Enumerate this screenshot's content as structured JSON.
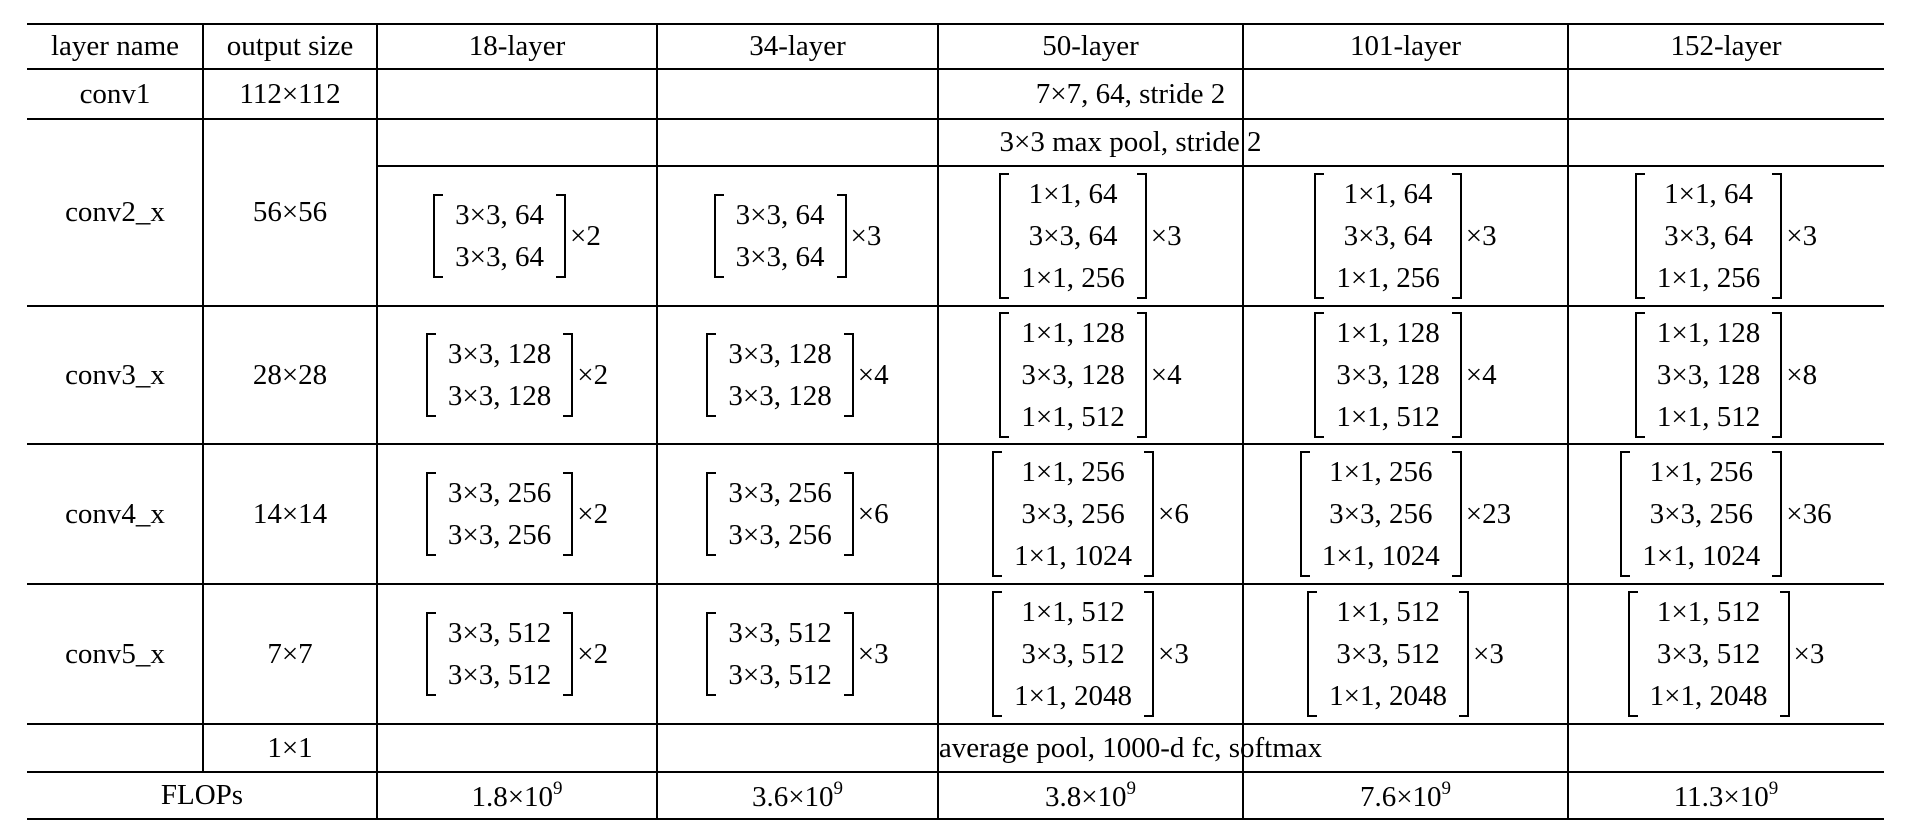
{
  "table": {
    "header": [
      "layer name",
      "output size",
      "18-layer",
      "34-layer",
      "50-layer",
      "101-layer",
      "152-layer"
    ],
    "rows": [
      {
        "layer": "conv1",
        "output": "112×112",
        "span": "7×7, 64, stride 2"
      },
      {
        "layer": "conv2_x",
        "output": "56×56",
        "span": "3×3 max pool, stride 2",
        "blocks": [
          {
            "lines": [
              "3×3, 64",
              "3×3, 64"
            ],
            "times": "×2"
          },
          {
            "lines": [
              "3×3, 64",
              "3×3, 64"
            ],
            "times": "×3"
          },
          {
            "lines": [
              "1×1, 64",
              "3×3, 64",
              "1×1, 256"
            ],
            "times": "×3"
          },
          {
            "lines": [
              "1×1, 64",
              "3×3, 64",
              "1×1, 256"
            ],
            "times": "×3"
          },
          {
            "lines": [
              "1×1, 64",
              "3×3, 64",
              "1×1, 256"
            ],
            "times": "×3"
          }
        ]
      },
      {
        "layer": "conv3_x",
        "output": "28×28",
        "blocks": [
          {
            "lines": [
              "3×3, 128",
              "3×3, 128"
            ],
            "times": "×2"
          },
          {
            "lines": [
              "3×3, 128",
              "3×3, 128"
            ],
            "times": "×4"
          },
          {
            "lines": [
              "1×1, 128",
              "3×3, 128",
              "1×1, 512"
            ],
            "times": "×4"
          },
          {
            "lines": [
              "1×1, 128",
              "3×3, 128",
              "1×1, 512"
            ],
            "times": "×4"
          },
          {
            "lines": [
              "1×1, 128",
              "3×3, 128",
              "1×1, 512"
            ],
            "times": "×8"
          }
        ]
      },
      {
        "layer": "conv4_x",
        "output": "14×14",
        "blocks": [
          {
            "lines": [
              "3×3, 256",
              "3×3, 256"
            ],
            "times": "×2"
          },
          {
            "lines": [
              "3×3, 256",
              "3×3, 256"
            ],
            "times": "×6"
          },
          {
            "lines": [
              "1×1, 256",
              "3×3, 256",
              "1×1, 1024"
            ],
            "times": "×6"
          },
          {
            "lines": [
              "1×1, 256",
              "3×3, 256",
              "1×1, 1024"
            ],
            "times": "×23"
          },
          {
            "lines": [
              "1×1, 256",
              "3×3, 256",
              "1×1, 1024"
            ],
            "times": "×36"
          }
        ]
      },
      {
        "layer": "conv5_x",
        "output": "7×7",
        "blocks": [
          {
            "lines": [
              "3×3, 512",
              "3×3, 512"
            ],
            "times": "×2"
          },
          {
            "lines": [
              "3×3, 512",
              "3×3, 512"
            ],
            "times": "×3"
          },
          {
            "lines": [
              "1×1, 512",
              "3×3, 512",
              "1×1, 2048"
            ],
            "times": "×3"
          },
          {
            "lines": [
              "1×1, 512",
              "3×3, 512",
              "1×1, 2048"
            ],
            "times": "×3"
          },
          {
            "lines": [
              "1×1, 512",
              "3×3, 512",
              "1×1, 2048"
            ],
            "times": "×3"
          }
        ]
      },
      {
        "output": "1×1",
        "span": "average pool, 1000-d fc, softmax"
      }
    ],
    "flops": {
      "label": "FLOPs",
      "values": [
        {
          "base": "1.8×10",
          "exp": "9"
        },
        {
          "base": "3.6×10",
          "exp": "9"
        },
        {
          "base": "3.8×10",
          "exp": "9"
        },
        {
          "base": "7.6×10",
          "exp": "9"
        },
        {
          "base": "11.3×10",
          "exp": "9"
        }
      ]
    }
  }
}
